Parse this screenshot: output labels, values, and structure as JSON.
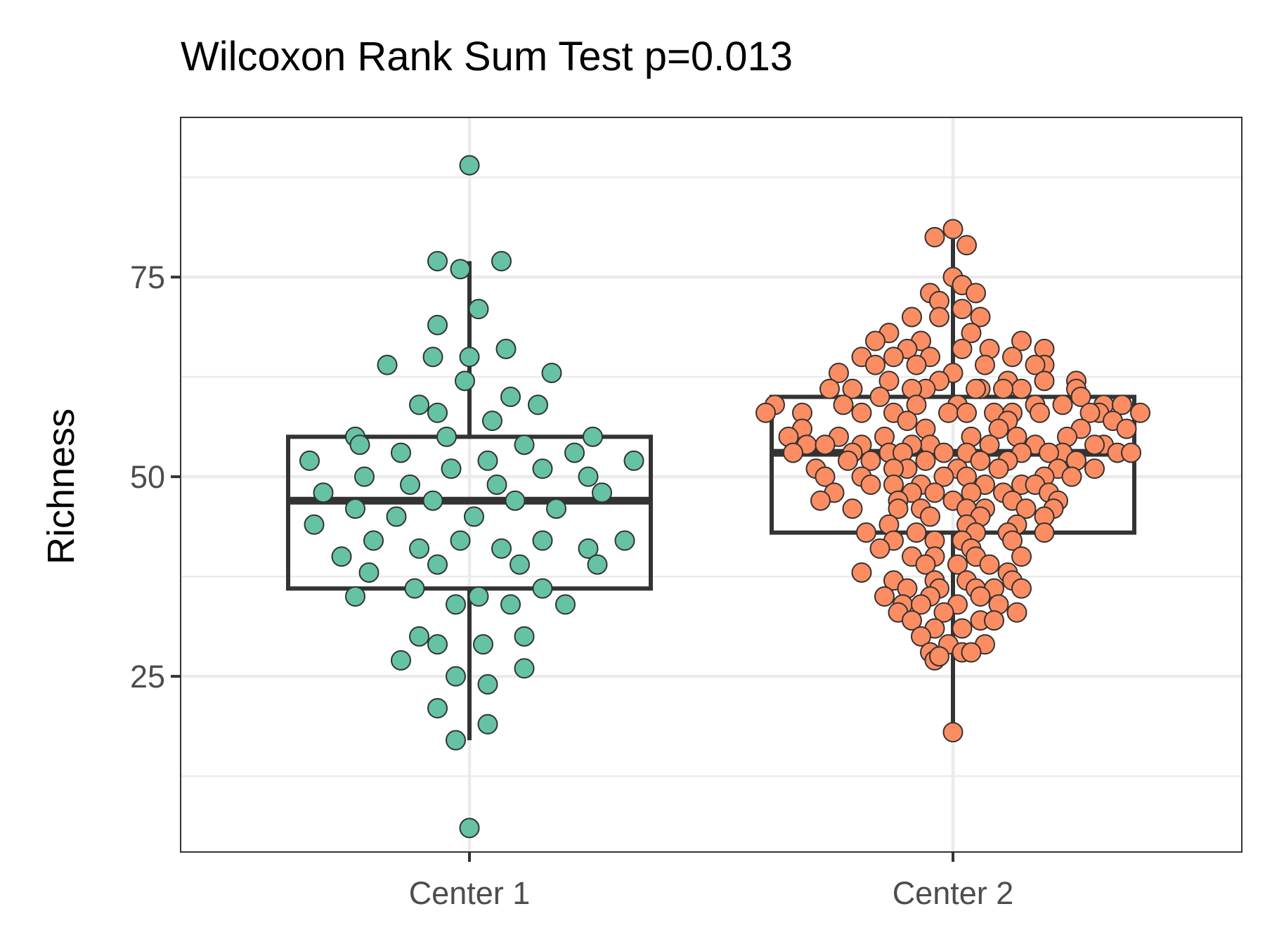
{
  "chart_data": {
    "type": "box",
    "title": "Wilcoxon Rank Sum Test p=0.013",
    "xlabel": "",
    "ylabel": "Richness",
    "ylim": [
      3,
      95
    ],
    "yticks": [
      25,
      50,
      75
    ],
    "grid": true,
    "legend": "none",
    "categories": [
      "Center 1",
      "Center 2"
    ],
    "colors": {
      "Center 1": "#66c2a5",
      "Center 2": "#fc8d62",
      "point_outline": "#333333",
      "box_stroke": "#333333",
      "grid": "#ebebeb",
      "panel_border": "#333333"
    },
    "boxes": [
      {
        "category": "Center 1",
        "whisker_low": 17,
        "q1": 36,
        "median": 47,
        "q3": 55,
        "whisker_high": 77
      },
      {
        "category": "Center 2",
        "whisker_low": 18,
        "q1": 43,
        "median": 53,
        "q3": 60,
        "whisker_high": 81
      }
    ],
    "points": {
      "Center 1": [
        [
          0.0,
          89
        ],
        [
          -0.07,
          77
        ],
        [
          -0.02,
          76
        ],
        [
          0.07,
          77
        ],
        [
          0.02,
          71
        ],
        [
          -0.07,
          69
        ],
        [
          0.08,
          66
        ],
        [
          -0.08,
          65
        ],
        [
          0.0,
          65
        ],
        [
          -0.18,
          64
        ],
        [
          0.18,
          63
        ],
        [
          -0.01,
          62
        ],
        [
          0.09,
          60
        ],
        [
          0.15,
          59
        ],
        [
          -0.11,
          59
        ],
        [
          -0.07,
          58
        ],
        [
          0.05,
          57
        ],
        [
          -0.05,
          55
        ],
        [
          -0.25,
          55
        ],
        [
          0.27,
          55
        ],
        [
          -0.24,
          54
        ],
        [
          0.12,
          54
        ],
        [
          -0.15,
          53
        ],
        [
          0.23,
          53
        ],
        [
          -0.35,
          52
        ],
        [
          0.04,
          52
        ],
        [
          0.36,
          52
        ],
        [
          -0.04,
          51
        ],
        [
          0.16,
          51
        ],
        [
          -0.23,
          50
        ],
        [
          0.26,
          50
        ],
        [
          -0.13,
          49
        ],
        [
          0.06,
          49
        ],
        [
          -0.32,
          48
        ],
        [
          0.29,
          48
        ],
        [
          -0.08,
          47
        ],
        [
          0.1,
          47
        ],
        [
          -0.25,
          46
        ],
        [
          0.19,
          46
        ],
        [
          -0.16,
          45
        ],
        [
          0.01,
          45
        ],
        [
          -0.34,
          44
        ],
        [
          -0.21,
          42
        ],
        [
          -0.02,
          42
        ],
        [
          0.16,
          42
        ],
        [
          0.34,
          42
        ],
        [
          -0.11,
          41
        ],
        [
          0.07,
          41
        ],
        [
          0.26,
          41
        ],
        [
          -0.28,
          40
        ],
        [
          -0.07,
          39
        ],
        [
          0.11,
          39
        ],
        [
          0.28,
          39
        ],
        [
          -0.22,
          38
        ],
        [
          -0.12,
          36
        ],
        [
          0.16,
          36
        ],
        [
          -0.25,
          35
        ],
        [
          0.02,
          35
        ],
        [
          -0.03,
          34
        ],
        [
          0.09,
          34
        ],
        [
          0.21,
          34
        ],
        [
          -0.11,
          30
        ],
        [
          0.12,
          30
        ],
        [
          -0.07,
          29
        ],
        [
          0.03,
          29
        ],
        [
          -0.15,
          27
        ],
        [
          0.12,
          26
        ],
        [
          -0.03,
          25
        ],
        [
          0.04,
          24
        ],
        [
          -0.07,
          21
        ],
        [
          0.04,
          19
        ],
        [
          -0.03,
          17
        ],
        [
          0.0,
          6
        ]
      ],
      "Center 2": [
        [
          0.0,
          81
        ],
        [
          -0.04,
          80
        ],
        [
          0.03,
          79
        ],
        [
          0.0,
          75
        ],
        [
          0.02,
          74
        ],
        [
          -0.05,
          73
        ],
        [
          0.05,
          73
        ],
        [
          -0.03,
          72
        ],
        [
          0.02,
          71
        ],
        [
          -0.09,
          70
        ],
        [
          0.06,
          70
        ],
        [
          -0.03,
          70
        ],
        [
          -0.14,
          68
        ],
        [
          0.04,
          68
        ],
        [
          -0.07,
          67
        ],
        [
          -0.17,
          67
        ],
        [
          0.15,
          67
        ],
        [
          -0.1,
          66
        ],
        [
          0.02,
          66
        ],
        [
          0.08,
          66
        ],
        [
          0.2,
          66
        ],
        [
          -0.2,
          65
        ],
        [
          -0.13,
          65
        ],
        [
          -0.05,
          65
        ],
        [
          0.13,
          65
        ],
        [
          0.2,
          64
        ],
        [
          -0.17,
          64
        ],
        [
          -0.08,
          64
        ],
        [
          0.07,
          64
        ],
        [
          0.18,
          64
        ],
        [
          -0.25,
          63
        ],
        [
          0.0,
          63
        ],
        [
          0.12,
          62
        ],
        [
          -0.14,
          62
        ],
        [
          0.27,
          62
        ],
        [
          -0.03,
          62
        ],
        [
          0.2,
          62
        ],
        [
          0.06,
          61
        ],
        [
          -0.27,
          61
        ],
        [
          -0.22,
          61
        ],
        [
          0.05,
          61
        ],
        [
          0.27,
          61
        ],
        [
          -0.06,
          61
        ],
        [
          -0.09,
          61
        ],
        [
          0.15,
          61
        ],
        [
          0.11,
          61
        ],
        [
          0.28,
          60
        ],
        [
          -0.16,
          60
        ],
        [
          -0.24,
          59
        ],
        [
          0.33,
          59
        ],
        [
          -0.08,
          59
        ],
        [
          0.24,
          59
        ],
        [
          -0.39,
          59
        ],
        [
          0.18,
          59
        ],
        [
          0.01,
          59
        ],
        [
          0.37,
          59
        ],
        [
          -0.33,
          58
        ],
        [
          -0.2,
          58
        ],
        [
          0.19,
          58
        ],
        [
          0.09,
          58
        ],
        [
          0.32,
          58
        ],
        [
          -0.13,
          58
        ],
        [
          -0.01,
          58
        ],
        [
          0.13,
          58
        ],
        [
          0.41,
          58
        ],
        [
          -0.41,
          58
        ],
        [
          0.03,
          58
        ],
        [
          0.3,
          58
        ],
        [
          -0.1,
          57
        ],
        [
          0.12,
          57
        ],
        [
          0.35,
          57
        ],
        [
          -0.33,
          56
        ],
        [
          0.1,
          56
        ],
        [
          -0.06,
          56
        ],
        [
          0.28,
          56
        ],
        [
          0.38,
          56
        ],
        [
          0.14,
          55
        ],
        [
          -0.25,
          55
        ],
        [
          -0.36,
          55
        ],
        [
          0.25,
          55
        ],
        [
          0.04,
          55
        ],
        [
          -0.15,
          55
        ],
        [
          -0.05,
          54
        ],
        [
          0.33,
          54
        ],
        [
          -0.32,
          54
        ],
        [
          0.18,
          54
        ],
        [
          -0.2,
          54
        ],
        [
          0.08,
          54
        ],
        [
          0.31,
          54
        ],
        [
          -0.28,
          54
        ],
        [
          -0.09,
          54
        ],
        [
          0.36,
          53
        ],
        [
          -0.14,
          53
        ],
        [
          -0.02,
          53
        ],
        [
          0.24,
          53
        ],
        [
          -0.35,
          53
        ],
        [
          0.21,
          53
        ],
        [
          0.03,
          53
        ],
        [
          -0.11,
          53
        ],
        [
          0.15,
          53
        ],
        [
          0.39,
          53
        ],
        [
          -0.22,
          53
        ],
        [
          -0.18,
          52
        ],
        [
          0.06,
          52
        ],
        [
          -0.06,
          52
        ],
        [
          0.27,
          52
        ],
        [
          -0.23,
          52
        ],
        [
          0.12,
          52
        ],
        [
          -0.1,
          51
        ],
        [
          0.23,
          51
        ],
        [
          0.01,
          51
        ],
        [
          -0.3,
          51
        ],
        [
          0.31,
          51
        ],
        [
          -0.13,
          51
        ],
        [
          0.1,
          51
        ],
        [
          -0.02,
          50
        ],
        [
          0.2,
          50
        ],
        [
          -0.2,
          50
        ],
        [
          0.03,
          50
        ],
        [
          0.26,
          50
        ],
        [
          -0.28,
          50
        ],
        [
          -0.13,
          49
        ],
        [
          0.15,
          49
        ],
        [
          -0.07,
          49
        ],
        [
          0.07,
          49
        ],
        [
          -0.18,
          49
        ],
        [
          0.18,
          49
        ],
        [
          -0.04,
          48
        ],
        [
          0.04,
          48
        ],
        [
          0.21,
          48
        ],
        [
          -0.26,
          48
        ],
        [
          -0.09,
          48
        ],
        [
          0.11,
          48
        ],
        [
          0.23,
          47
        ],
        [
          -0.12,
          47
        ],
        [
          0.13,
          47
        ],
        [
          -0.29,
          47
        ],
        [
          0.0,
          47
        ],
        [
          0.03,
          46
        ],
        [
          -0.22,
          46
        ],
        [
          0.16,
          46
        ],
        [
          -0.07,
          46
        ],
        [
          0.07,
          46
        ],
        [
          -0.12,
          46
        ],
        [
          0.22,
          46
        ],
        [
          0.2,
          45
        ],
        [
          -0.05,
          45
        ],
        [
          0.06,
          45
        ],
        [
          -0.14,
          44
        ],
        [
          0.14,
          44
        ],
        [
          0.03,
          44
        ],
        [
          -0.19,
          43
        ],
        [
          0.12,
          43
        ],
        [
          -0.08,
          43
        ],
        [
          0.05,
          43
        ],
        [
          0.2,
          43
        ],
        [
          -0.13,
          42
        ],
        [
          0.02,
          42
        ],
        [
          -0.04,
          42
        ],
        [
          0.13,
          42
        ],
        [
          -0.16,
          41
        ],
        [
          0.04,
          41
        ],
        [
          -0.09,
          40
        ],
        [
          0.15,
          40
        ],
        [
          0.05,
          40
        ],
        [
          -0.04,
          40
        ],
        [
          0.08,
          39
        ],
        [
          -0.06,
          39
        ],
        [
          0.01,
          39
        ],
        [
          0.12,
          38
        ],
        [
          -0.2,
          38
        ],
        [
          -0.13,
          37
        ],
        [
          0.13,
          37
        ],
        [
          -0.04,
          37
        ],
        [
          0.03,
          37
        ],
        [
          -0.1,
          36
        ],
        [
          0.15,
          36
        ],
        [
          -0.03,
          36
        ],
        [
          0.05,
          36
        ],
        [
          0.09,
          36
        ],
        [
          -0.15,
          35
        ],
        [
          -0.05,
          35
        ],
        [
          0.06,
          35
        ],
        [
          -0.11,
          34
        ],
        [
          0.1,
          34
        ],
        [
          -0.07,
          34
        ],
        [
          0.01,
          34
        ],
        [
          -0.12,
          33
        ],
        [
          0.14,
          33
        ],
        [
          -0.02,
          33
        ],
        [
          0.06,
          32
        ],
        [
          -0.09,
          32
        ],
        [
          0.09,
          32
        ],
        [
          -0.04,
          31
        ],
        [
          0.02,
          31
        ],
        [
          -0.07,
          30
        ],
        [
          0.07,
          29
        ],
        [
          -0.01,
          29
        ],
        [
          -0.05,
          28
        ],
        [
          0.02,
          28
        ],
        [
          -0.04,
          27
        ],
        [
          0.04,
          28
        ],
        [
          -0.03,
          27.5
        ],
        [
          0.0,
          18
        ]
      ]
    }
  }
}
